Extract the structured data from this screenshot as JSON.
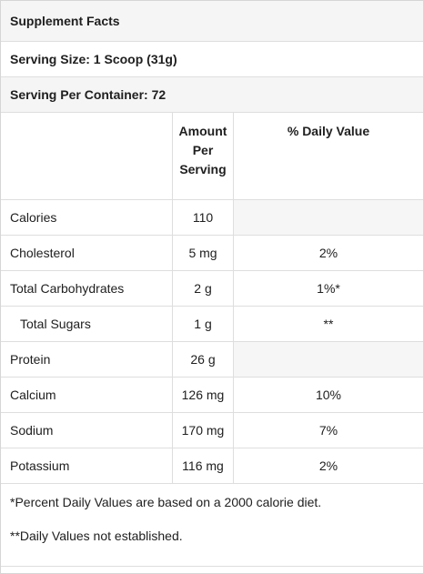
{
  "title": "Supplement Facts",
  "serving_size": "Serving Size: 1 Scoop (31g)",
  "servings_per_container": "Serving Per Container: 72",
  "columns": {
    "amount_line1": "Amount",
    "amount_line2": "Per",
    "amount_line3": "Serving",
    "daily_value": "% Daily Value"
  },
  "rows": [
    {
      "name": "Calories",
      "amount": "110",
      "dv": ""
    },
    {
      "name": "Cholesterol",
      "amount": "5 mg",
      "dv": "2%"
    },
    {
      "name": "Total Carbohydrates",
      "amount": "2 g",
      "dv": "1%*"
    },
    {
      "name": "Total Sugars",
      "amount": "1 g",
      "dv": "**"
    },
    {
      "name": "Protein",
      "amount": "26 g",
      "dv": ""
    },
    {
      "name": "Calcium",
      "amount": "126 mg",
      "dv": "10%"
    },
    {
      "name": "Sodium",
      "amount": "170 mg",
      "dv": "7%"
    },
    {
      "name": "Potassium",
      "amount": "116 mg",
      "dv": "2%"
    }
  ],
  "footnotes": {
    "percent": "*Percent Daily Values are based on a 2000 calorie diet.",
    "not_established": "**Daily Values not established."
  }
}
